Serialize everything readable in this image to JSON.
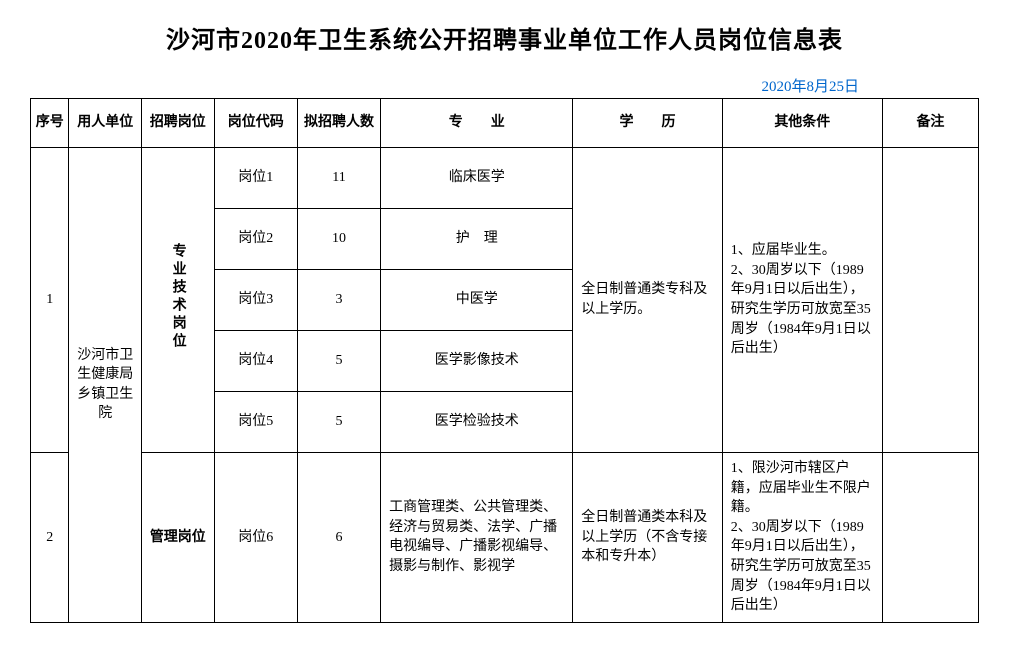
{
  "title": "沙河市2020年卫生系统公开招聘事业单位工作人员岗位信息表",
  "date": "2020年8月25日",
  "headers": {
    "seq": "序号",
    "unit": "用人单位",
    "post": "招聘岗位",
    "code": "岗位代码",
    "count": "拟招聘人数",
    "major": "专　　业",
    "edu": "学　　历",
    "other": "其他条件",
    "remark": "备注"
  },
  "unit_name": "沙河市卫生健康局乡镇卫生院",
  "group1": {
    "seq": "1",
    "post_label": "专业技术岗位",
    "edu": "全日制普通类专科及以上学历。",
    "other": "1、应届毕业生。\n2、30周岁以下（1989年9月1日以后出生），研究生学历可放宽至35周岁（1984年9月1日以后出生）",
    "rows": [
      {
        "code": "岗位1",
        "count": "11",
        "major": "临床医学"
      },
      {
        "code": "岗位2",
        "count": "10",
        "major": "护　理"
      },
      {
        "code": "岗位3",
        "count": "3",
        "major": "中医学"
      },
      {
        "code": "岗位4",
        "count": "5",
        "major": "医学影像技术"
      },
      {
        "code": "岗位5",
        "count": "5",
        "major": "医学检验技术"
      }
    ]
  },
  "group2": {
    "seq": "2",
    "post_label": "管理岗位",
    "code": "岗位6",
    "count": "6",
    "major": "工商管理类、公共管理类、经济与贸易类、法学、广播电视编导、广播影视编导、摄影与制作、影视学",
    "edu": "全日制普通类本科及以上学历（不含专接本和专升本）",
    "other": "1、限沙河市辖区户籍，应届毕业生不限户籍。\n2、30周岁以下（1989年9月1日以后出生），研究生学历可放宽至35周岁（1984年9月1日以后出生）"
  }
}
